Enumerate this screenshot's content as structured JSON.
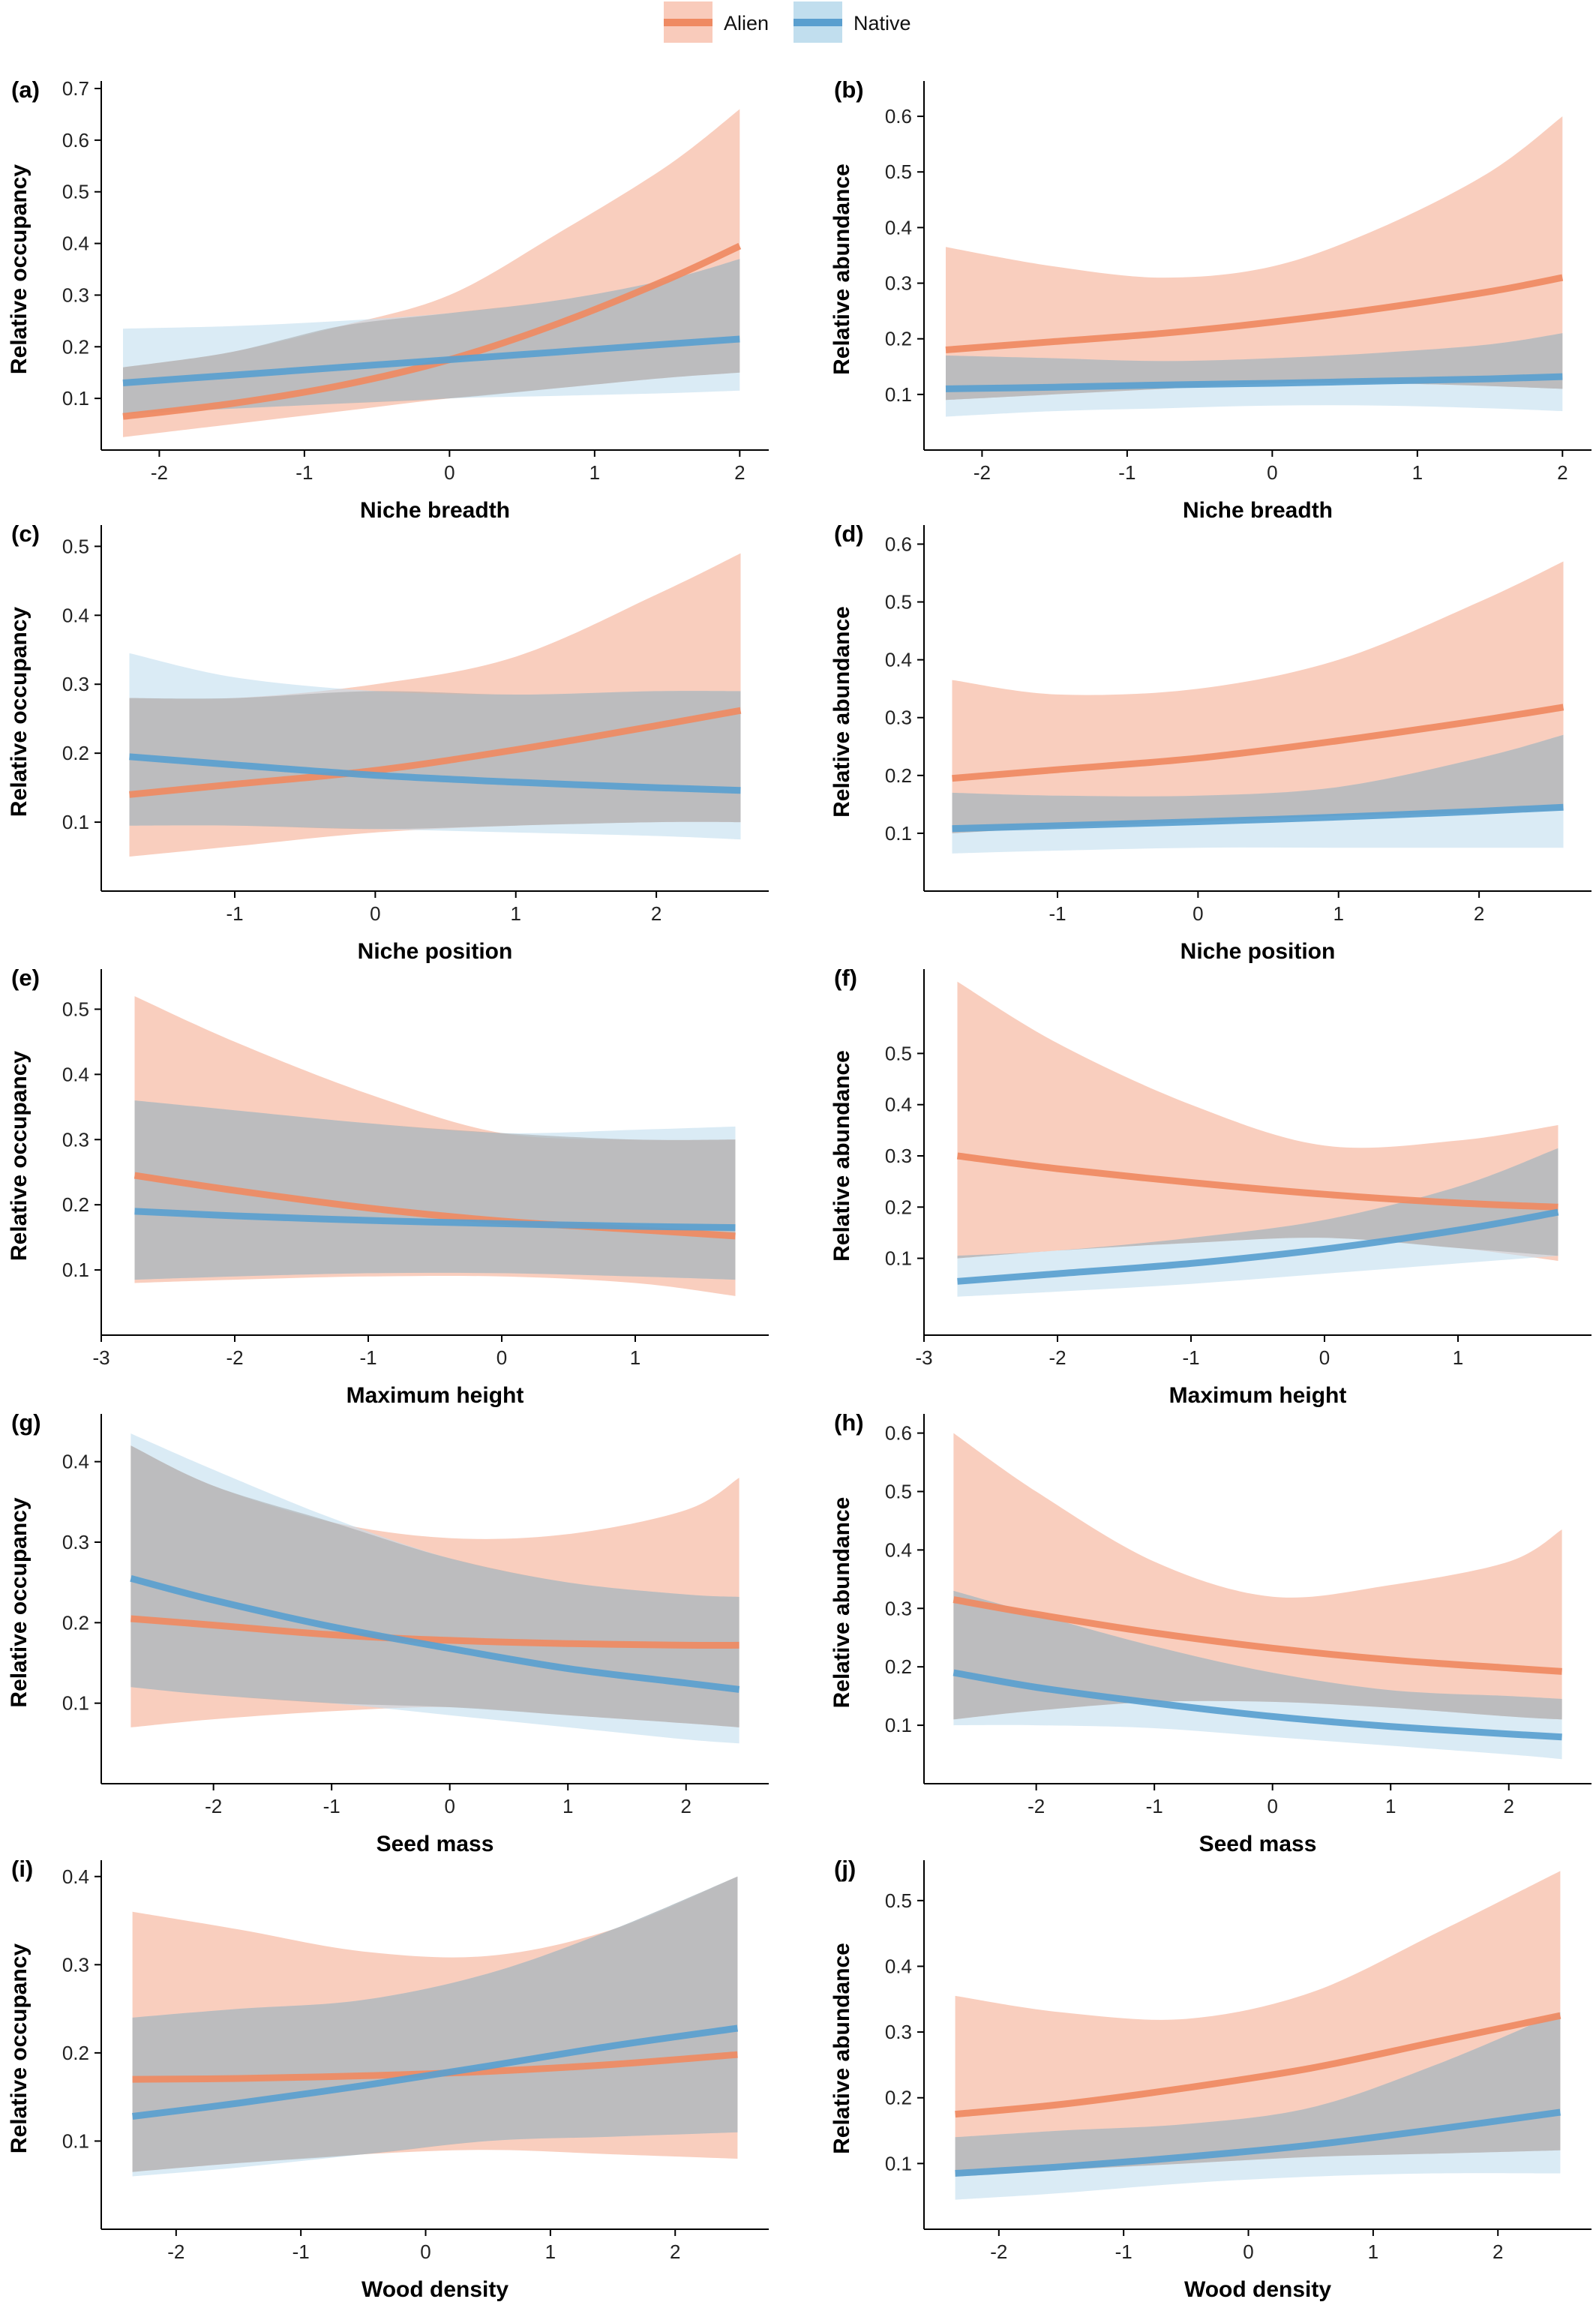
{
  "legend": {
    "items": [
      {
        "label": "Alien",
        "color": "#ef8a62",
        "band_color": "#f9cbbb"
      },
      {
        "label": "Native",
        "color": "#5a9fcf",
        "band_color": "#c1deee"
      }
    ]
  },
  "chart_data": [
    {
      "type": "line",
      "panel": "(a)",
      "title": "",
      "xlabel": "Niche breadth",
      "ylabel": "Relative occupancy",
      "xlim": [
        -2.4,
        2.2
      ],
      "ylim": [
        0,
        0.7
      ],
      "xticks": [
        -2,
        -1,
        0,
        1,
        2
      ],
      "yticks": [
        0.1,
        0.2,
        0.3,
        0.4,
        0.5,
        0.6,
        0.7
      ],
      "x": [
        -2.25,
        -1.5,
        -0.75,
        0,
        0.75,
        1.5,
        2
      ],
      "series": [
        {
          "name": "Alien",
          "values": [
            0.065,
            0.09,
            0.125,
            0.175,
            0.245,
            0.33,
            0.395
          ],
          "lower": [
            0.025,
            0.05,
            0.075,
            0.1,
            0.12,
            0.14,
            0.15
          ],
          "upper": [
            0.16,
            0.19,
            0.24,
            0.3,
            0.42,
            0.55,
            0.66
          ]
        },
        {
          "name": "Native",
          "values": [
            0.13,
            0.145,
            0.16,
            0.175,
            0.19,
            0.205,
            0.215
          ],
          "lower": [
            0.07,
            0.08,
            0.09,
            0.1,
            0.105,
            0.11,
            0.115
          ],
          "upper": [
            0.235,
            0.24,
            0.25,
            0.265,
            0.29,
            0.33,
            0.37
          ]
        }
      ]
    },
    {
      "type": "line",
      "panel": "(b)",
      "title": "",
      "xlabel": "Niche breadth",
      "ylabel": "Relative abundance",
      "xlim": [
        -2.4,
        2.2
      ],
      "ylim": [
        0,
        0.65
      ],
      "xticks": [
        -2,
        -1,
        0,
        1,
        2
      ],
      "yticks": [
        0.1,
        0.2,
        0.3,
        0.4,
        0.5,
        0.6
      ],
      "x": [
        -2.25,
        -1.5,
        -0.75,
        0,
        0.75,
        1.5,
        2
      ],
      "series": [
        {
          "name": "Alien",
          "values": [
            0.18,
            0.195,
            0.21,
            0.23,
            0.255,
            0.285,
            0.31
          ],
          "lower": [
            0.09,
            0.1,
            0.11,
            0.12,
            0.12,
            0.115,
            0.11
          ],
          "upper": [
            0.365,
            0.33,
            0.31,
            0.33,
            0.4,
            0.5,
            0.6
          ]
        },
        {
          "name": "Native",
          "values": [
            0.11,
            0.113,
            0.117,
            0.12,
            0.124,
            0.128,
            0.132
          ],
          "lower": [
            0.06,
            0.07,
            0.075,
            0.08,
            0.08,
            0.075,
            0.07
          ],
          "upper": [
            0.17,
            0.165,
            0.16,
            0.165,
            0.175,
            0.19,
            0.21
          ]
        }
      ]
    },
    {
      "type": "line",
      "panel": "(c)",
      "title": "",
      "xlabel": "Niche position",
      "ylabel": "Relative occupancy",
      "xlim": [
        -1.95,
        2.8
      ],
      "ylim": [
        0,
        0.52
      ],
      "xticks": [
        -1,
        0,
        1,
        2
      ],
      "yticks": [
        0.1,
        0.2,
        0.3,
        0.4,
        0.5
      ],
      "x": [
        -1.75,
        -1,
        0,
        1,
        2,
        2.6
      ],
      "series": [
        {
          "name": "Alien",
          "values": [
            0.14,
            0.155,
            0.175,
            0.205,
            0.24,
            0.262
          ],
          "lower": [
            0.05,
            0.065,
            0.085,
            0.095,
            0.1,
            0.1
          ],
          "upper": [
            0.28,
            0.28,
            0.3,
            0.34,
            0.43,
            0.49
          ]
        },
        {
          "name": "Native",
          "values": [
            0.195,
            0.183,
            0.168,
            0.158,
            0.15,
            0.146
          ],
          "lower": [
            0.095,
            0.095,
            0.09,
            0.085,
            0.08,
            0.075
          ],
          "upper": [
            0.345,
            0.31,
            0.29,
            0.285,
            0.29,
            0.29
          ]
        }
      ]
    },
    {
      "type": "line",
      "panel": "(d)",
      "title": "",
      "xlabel": "Niche position",
      "ylabel": "Relative abundance",
      "xlim": [
        -1.95,
        2.8
      ],
      "ylim": [
        0,
        0.62
      ],
      "xticks": [
        -1,
        0,
        1,
        2
      ],
      "yticks": [
        0.1,
        0.2,
        0.3,
        0.4,
        0.5,
        0.6
      ],
      "x": [
        -1.75,
        -1,
        0,
        1,
        2,
        2.6
      ],
      "series": [
        {
          "name": "Alien",
          "values": [
            0.195,
            0.21,
            0.23,
            0.26,
            0.295,
            0.318
          ],
          "lower": [
            0.1,
            0.11,
            0.12,
            0.13,
            0.135,
            0.14
          ],
          "upper": [
            0.365,
            0.34,
            0.35,
            0.4,
            0.5,
            0.57
          ]
        },
        {
          "name": "Native",
          "values": [
            0.108,
            0.113,
            0.12,
            0.128,
            0.138,
            0.145
          ],
          "lower": [
            0.065,
            0.07,
            0.075,
            0.075,
            0.075,
            0.075
          ],
          "upper": [
            0.17,
            0.165,
            0.165,
            0.18,
            0.23,
            0.27
          ]
        }
      ]
    },
    {
      "type": "line",
      "panel": "(e)",
      "title": "",
      "xlabel": "Maximum height",
      "ylabel": "Relative occupancy",
      "xlim": [
        -3,
        2
      ],
      "ylim": [
        0,
        0.55
      ],
      "xticks": [
        -3,
        -2,
        -1,
        0,
        1
      ],
      "yticks": [
        0.1,
        0.2,
        0.3,
        0.4,
        0.5
      ],
      "x": [
        -2.75,
        -2,
        -1,
        0,
        1,
        1.75
      ],
      "series": [
        {
          "name": "Alien",
          "values": [
            0.245,
            0.222,
            0.195,
            0.175,
            0.162,
            0.152
          ],
          "lower": [
            0.08,
            0.085,
            0.09,
            0.09,
            0.08,
            0.06
          ],
          "upper": [
            0.52,
            0.45,
            0.37,
            0.31,
            0.3,
            0.3
          ]
        },
        {
          "name": "Native",
          "values": [
            0.19,
            0.183,
            0.176,
            0.171,
            0.167,
            0.165
          ],
          "lower": [
            0.085,
            0.09,
            0.095,
            0.095,
            0.09,
            0.085
          ],
          "upper": [
            0.36,
            0.345,
            0.325,
            0.31,
            0.315,
            0.32
          ]
        }
      ]
    },
    {
      "type": "line",
      "panel": "(f)",
      "title": "",
      "xlabel": "Maximum height",
      "ylabel": "Relative abundance",
      "xlim": [
        -3,
        2
      ],
      "ylim": [
        -0.05,
        0.65
      ],
      "xticks": [
        -3,
        -2,
        -1,
        0,
        1
      ],
      "yticks": [
        0.1,
        0.2,
        0.3,
        0.4,
        0.5
      ],
      "x": [
        -2.75,
        -2,
        -1,
        0,
        1,
        1.75
      ],
      "series": [
        {
          "name": "Alien",
          "values": [
            0.3,
            0.275,
            0.248,
            0.225,
            0.208,
            0.2
          ],
          "lower": [
            0.1,
            0.115,
            0.13,
            0.14,
            0.12,
            0.095
          ],
          "upper": [
            0.64,
            0.52,
            0.4,
            0.32,
            0.33,
            0.36
          ]
        },
        {
          "name": "Native",
          "values": [
            0.055,
            0.07,
            0.09,
            0.118,
            0.155,
            0.19
          ],
          "lower": [
            0.025,
            0.035,
            0.05,
            0.07,
            0.09,
            0.105
          ],
          "upper": [
            0.105,
            0.115,
            0.14,
            0.175,
            0.24,
            0.315
          ]
        }
      ]
    },
    {
      "type": "line",
      "panel": "(g)",
      "title": "",
      "xlabel": "Seed mass",
      "ylabel": "Relative occupancy",
      "xlim": [
        -2.95,
        2.7
      ],
      "ylim": [
        0,
        0.45
      ],
      "xticks": [
        -2,
        -1,
        0,
        1,
        2
      ],
      "yticks": [
        0.1,
        0.2,
        0.3,
        0.4
      ],
      "x": [
        -2.7,
        -2,
        -1,
        0,
        1,
        2,
        2.45
      ],
      "series": [
        {
          "name": "Alien",
          "values": [
            0.205,
            0.197,
            0.185,
            0.178,
            0.174,
            0.172,
            0.172
          ],
          "lower": [
            0.07,
            0.08,
            0.09,
            0.095,
            0.085,
            0.075,
            0.07
          ],
          "upper": [
            0.42,
            0.37,
            0.325,
            0.305,
            0.31,
            0.34,
            0.38
          ]
        },
        {
          "name": "Native",
          "values": [
            0.255,
            0.228,
            0.195,
            0.168,
            0.143,
            0.125,
            0.117
          ],
          "lower": [
            0.12,
            0.11,
            0.1,
            0.085,
            0.07,
            0.055,
            0.05
          ],
          "upper": [
            0.435,
            0.39,
            0.33,
            0.28,
            0.25,
            0.235,
            0.232
          ]
        }
      ]
    },
    {
      "type": "line",
      "panel": "(h)",
      "title": "",
      "xlabel": "Seed mass",
      "ylabel": "Relative abundance",
      "xlim": [
        -2.95,
        2.7
      ],
      "ylim": [
        0,
        0.62
      ],
      "xticks": [
        -2,
        -1,
        0,
        1,
        2
      ],
      "yticks": [
        0.1,
        0.2,
        0.3,
        0.4,
        0.5,
        0.6
      ],
      "x": [
        -2.7,
        -2,
        -1,
        0,
        1,
        2,
        2.45
      ],
      "series": [
        {
          "name": "Alien",
          "values": [
            0.315,
            0.29,
            0.258,
            0.232,
            0.212,
            0.198,
            0.192
          ],
          "lower": [
            0.11,
            0.125,
            0.14,
            0.14,
            0.13,
            0.115,
            0.11
          ],
          "upper": [
            0.6,
            0.5,
            0.38,
            0.32,
            0.34,
            0.38,
            0.435
          ]
        },
        {
          "name": "Native",
          "values": [
            0.19,
            0.165,
            0.138,
            0.115,
            0.098,
            0.085,
            0.08
          ],
          "lower": [
            0.1,
            0.1,
            0.095,
            0.08,
            0.065,
            0.05,
            0.042
          ],
          "upper": [
            0.33,
            0.29,
            0.235,
            0.19,
            0.16,
            0.15,
            0.145
          ]
        }
      ]
    },
    {
      "type": "line",
      "panel": "(i)",
      "title": "",
      "xlabel": "Wood density",
      "ylabel": "Relative occupancy",
      "xlim": [
        -2.6,
        2.75
      ],
      "ylim": [
        0,
        0.41
      ],
      "xticks": [
        -2,
        -1,
        0,
        1,
        2
      ],
      "yticks": [
        0.1,
        0.2,
        0.3,
        0.4
      ],
      "x": [
        -2.35,
        -1.5,
        -0.5,
        0.5,
        1.5,
        2.5
      ],
      "series": [
        {
          "name": "Alien",
          "values": [
            0.17,
            0.171,
            0.174,
            0.179,
            0.187,
            0.198
          ],
          "lower": [
            0.065,
            0.075,
            0.085,
            0.09,
            0.085,
            0.08
          ],
          "upper": [
            0.36,
            0.34,
            0.315,
            0.31,
            0.34,
            0.4
          ]
        },
        {
          "name": "Native",
          "values": [
            0.128,
            0.143,
            0.163,
            0.185,
            0.208,
            0.228
          ],
          "lower": [
            0.06,
            0.07,
            0.085,
            0.1,
            0.105,
            0.11
          ],
          "upper": [
            0.24,
            0.25,
            0.26,
            0.29,
            0.34,
            0.4
          ]
        }
      ]
    },
    {
      "type": "line",
      "panel": "(j)",
      "title": "",
      "xlabel": "Wood density",
      "ylabel": "Relative abundance",
      "xlim": [
        -2.6,
        2.75
      ],
      "ylim": [
        0,
        0.55
      ],
      "xticks": [
        -2,
        -1,
        0,
        1,
        2
      ],
      "yticks": [
        0.1,
        0.2,
        0.3,
        0.4,
        0.5
      ],
      "x": [
        -2.35,
        -1.5,
        -0.5,
        0.5,
        1.5,
        2.5
      ],
      "series": [
        {
          "name": "Alien",
          "values": [
            0.175,
            0.19,
            0.215,
            0.245,
            0.285,
            0.325
          ],
          "lower": [
            0.08,
            0.09,
            0.1,
            0.11,
            0.115,
            0.12
          ],
          "upper": [
            0.355,
            0.33,
            0.32,
            0.36,
            0.45,
            0.545
          ]
        },
        {
          "name": "Native",
          "values": [
            0.085,
            0.095,
            0.11,
            0.128,
            0.152,
            0.178
          ],
          "lower": [
            0.045,
            0.055,
            0.07,
            0.08,
            0.085,
            0.085
          ],
          "upper": [
            0.14,
            0.15,
            0.16,
            0.185,
            0.25,
            0.33
          ]
        }
      ]
    }
  ]
}
